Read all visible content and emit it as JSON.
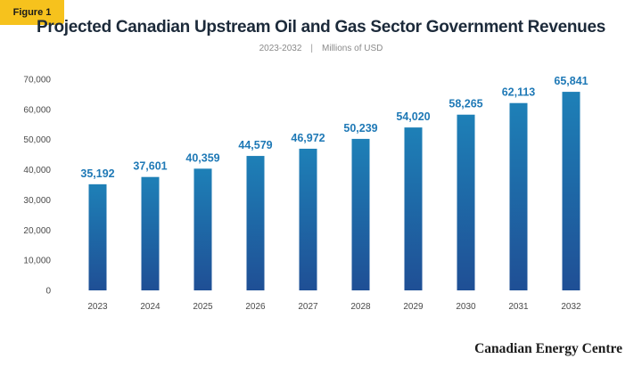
{
  "badge": "Figure 1",
  "brand": "Canadian Energy Centre",
  "chart_data": {
    "type": "bar",
    "title": "Projected Canadian Upstream Oil and Gas Sector Government Revenues",
    "subtitle_left": "2023-2032",
    "subtitle_sep": "|",
    "subtitle_right": "Millions of USD",
    "xlabel": "",
    "ylabel": "",
    "categories": [
      "2023",
      "2024",
      "2025",
      "2026",
      "2027",
      "2028",
      "2029",
      "2030",
      "2031",
      "2032"
    ],
    "values": [
      35192,
      37601,
      40359,
      44579,
      46972,
      50239,
      54020,
      58265,
      62113,
      65841
    ],
    "value_labels": [
      "35,192",
      "37,601",
      "40,359",
      "44,579",
      "46,972",
      "50,239",
      "54,020",
      "58,265",
      "62,113",
      "65,841"
    ],
    "ylim": [
      0,
      70000
    ],
    "yticks": [
      0,
      10000,
      20000,
      30000,
      40000,
      50000,
      60000,
      70000
    ],
    "ytick_labels": [
      "0",
      "10,000",
      "20,000",
      "30,000",
      "40,000",
      "50,000",
      "60,000",
      "70,000"
    ],
    "grid": false,
    "legend": "none",
    "colors": {
      "bar_top": "#1e80b7",
      "bar_bottom": "#1f4f95",
      "value_label": "#1f79b6",
      "axis_text": "#4a4a4a",
      "badge": "#f6c21d"
    }
  }
}
